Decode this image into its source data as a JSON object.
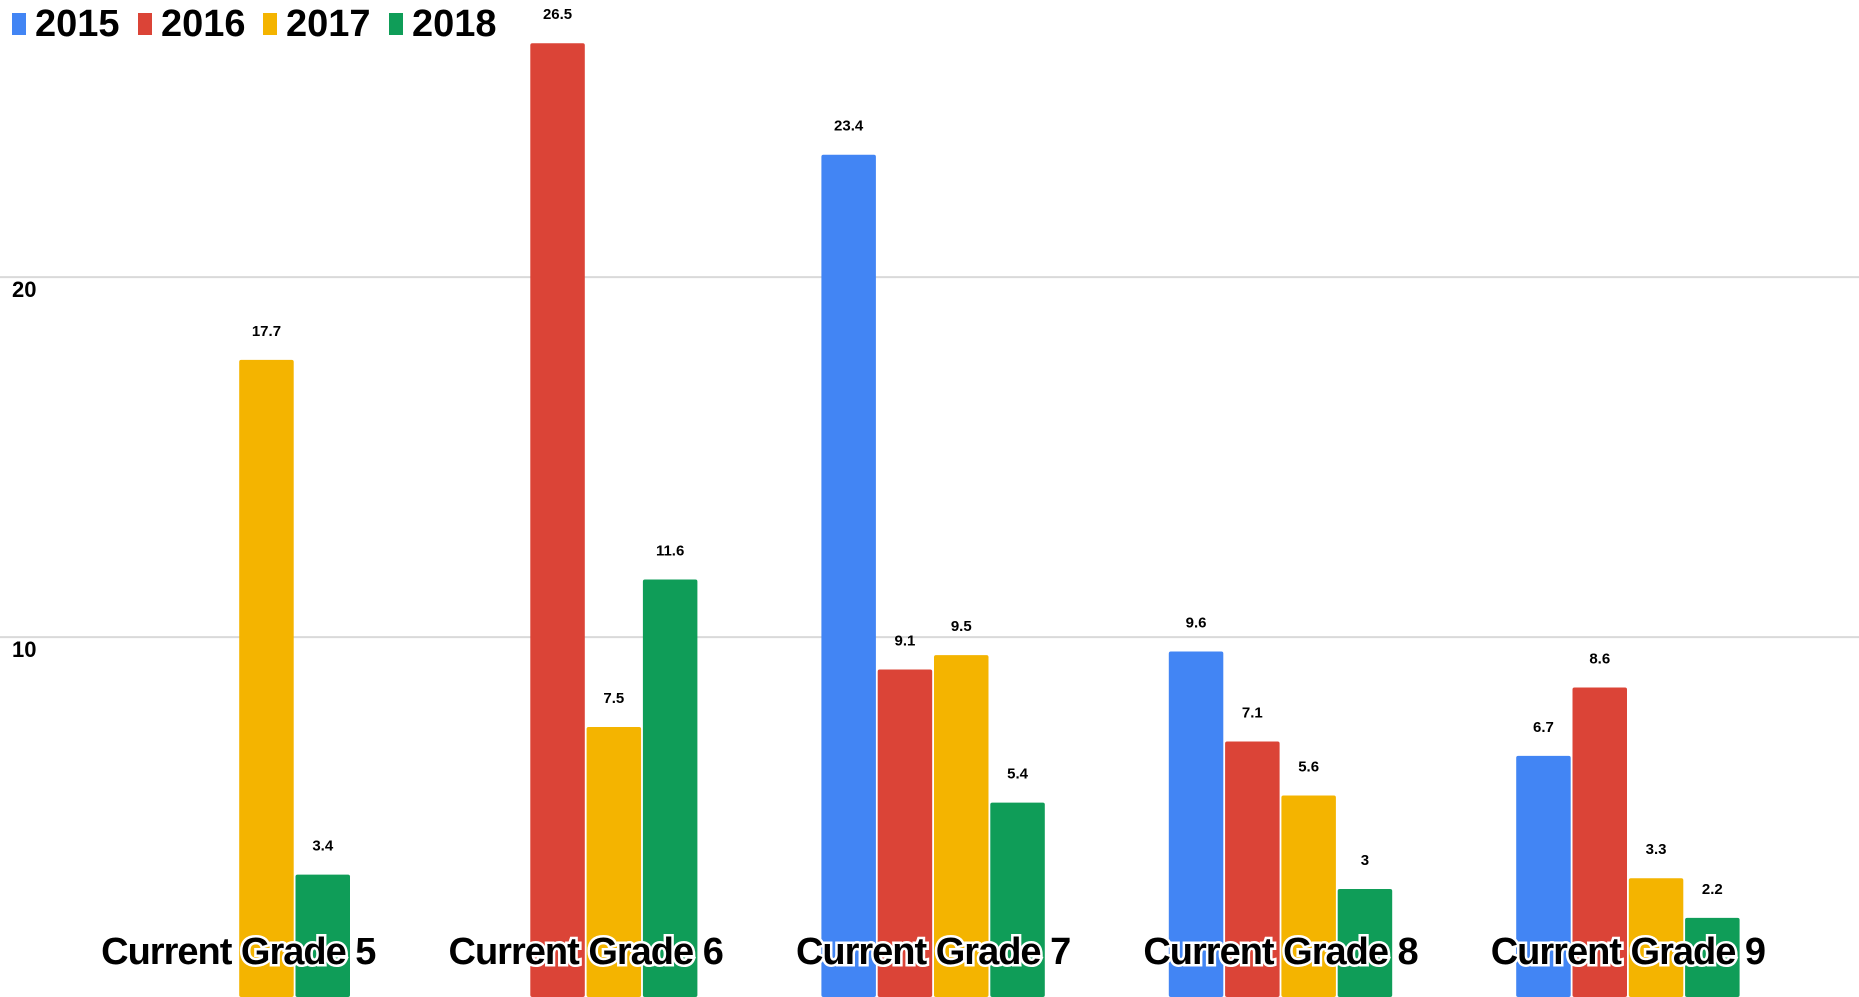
{
  "chart_data": {
    "type": "bar",
    "categories": [
      "Current Grade 5",
      "Current Grade 6",
      "Current Grade 7",
      "Current Grade 8",
      "Current Grade 9"
    ],
    "series": [
      {
        "name": "2015",
        "color": "#4285f4",
        "values": [
          null,
          null,
          23.4,
          9.6,
          6.7
        ]
      },
      {
        "name": "2016",
        "color": "#db4437",
        "values": [
          null,
          26.5,
          9.1,
          7.1,
          8.6
        ]
      },
      {
        "name": "2017",
        "color": "#f4b400",
        "values": [
          17.7,
          7.5,
          9.5,
          5.6,
          3.3
        ]
      },
      {
        "name": "2018",
        "color": "#0f9d58",
        "values": [
          3.4,
          11.6,
          5.4,
          3,
          2.2
        ]
      }
    ],
    "ylim": [
      0,
      27.7
    ],
    "yticks": [
      10,
      20
    ],
    "grid": true,
    "legend": "top-left"
  }
}
